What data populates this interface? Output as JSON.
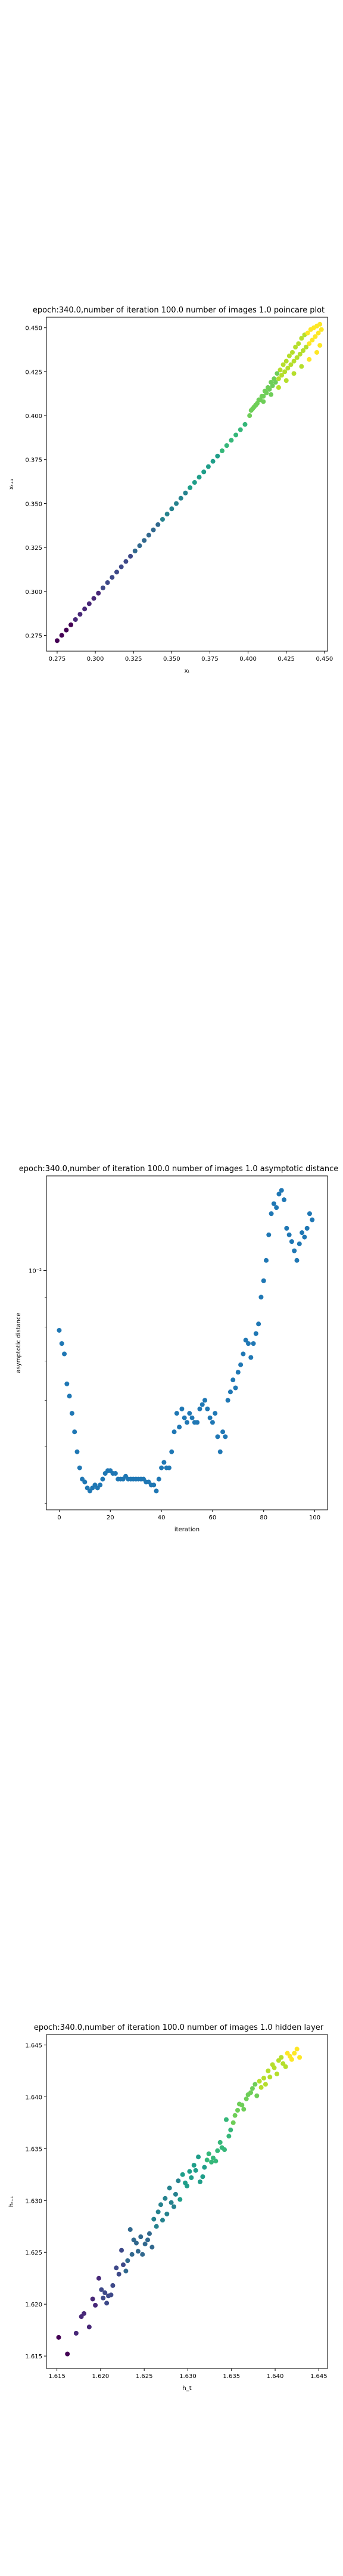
{
  "chart_data": [
    {
      "type": "scatter",
      "title": "epoch:340.0,number of iteration 100.0 number of images 1.0 poincare plot",
      "xlabel": "xₜ",
      "ylabel": "xₜ₊₁",
      "xlim": [
        0.268,
        0.452
      ],
      "ylim": [
        0.266,
        0.456
      ],
      "xticks": [
        "0.275",
        "0.300",
        "0.325",
        "0.350",
        "0.375",
        "0.400",
        "0.425",
        "0.450"
      ],
      "yticks": [
        "0.275",
        "0.300",
        "0.325",
        "0.350",
        "0.375",
        "0.400",
        "0.425",
        "0.450"
      ],
      "colormap": "viridis",
      "grid": false,
      "x": [
        0.275,
        0.278,
        0.281,
        0.284,
        0.287,
        0.29,
        0.293,
        0.296,
        0.299,
        0.302,
        0.305,
        0.308,
        0.311,
        0.314,
        0.317,
        0.32,
        0.323,
        0.326,
        0.329,
        0.332,
        0.335,
        0.338,
        0.341,
        0.344,
        0.347,
        0.35,
        0.353,
        0.356,
        0.359,
        0.362,
        0.365,
        0.368,
        0.371,
        0.374,
        0.377,
        0.38,
        0.383,
        0.386,
        0.389,
        0.392,
        0.395,
        0.398,
        0.401,
        0.403,
        0.405,
        0.407,
        0.409,
        0.411,
        0.413,
        0.415,
        0.417,
        0.419,
        0.421,
        0.423,
        0.425,
        0.427,
        0.429,
        0.431,
        0.433,
        0.435,
        0.437,
        0.439,
        0.441,
        0.443,
        0.445,
        0.447,
        0.402,
        0.404,
        0.406,
        0.408,
        0.41,
        0.412,
        0.414,
        0.416,
        0.418,
        0.42,
        0.422,
        0.424,
        0.426,
        0.428,
        0.43,
        0.432,
        0.434,
        0.436,
        0.438,
        0.44,
        0.442,
        0.444,
        0.446,
        0.448,
        0.405,
        0.41,
        0.415,
        0.42,
        0.425,
        0.43,
        0.435,
        0.44,
        0.445,
        0.447
      ],
      "y": [
        0.272,
        0.275,
        0.278,
        0.281,
        0.284,
        0.287,
        0.29,
        0.293,
        0.296,
        0.299,
        0.302,
        0.305,
        0.308,
        0.311,
        0.314,
        0.317,
        0.32,
        0.323,
        0.326,
        0.329,
        0.332,
        0.335,
        0.338,
        0.341,
        0.344,
        0.347,
        0.35,
        0.353,
        0.356,
        0.359,
        0.362,
        0.365,
        0.368,
        0.371,
        0.374,
        0.377,
        0.38,
        0.383,
        0.386,
        0.389,
        0.392,
        0.395,
        0.4,
        0.404,
        0.406,
        0.409,
        0.411,
        0.414,
        0.416,
        0.419,
        0.421,
        0.424,
        0.426,
        0.429,
        0.431,
        0.434,
        0.436,
        0.439,
        0.441,
        0.444,
        0.446,
        0.447,
        0.449,
        0.45,
        0.451,
        0.452,
        0.403,
        0.405,
        0.407,
        0.409,
        0.411,
        0.413,
        0.415,
        0.417,
        0.419,
        0.421,
        0.423,
        0.425,
        0.427,
        0.429,
        0.431,
        0.433,
        0.435,
        0.437,
        0.439,
        0.441,
        0.443,
        0.445,
        0.447,
        0.449,
        0.406,
        0.408,
        0.412,
        0.416,
        0.42,
        0.424,
        0.428,
        0.432,
        0.436,
        0.44
      ]
    },
    {
      "type": "scatter",
      "title": "epoch:340.0,number of iteration 100.0  number of images 1.0 asymptotic distance",
      "xlabel": "iteration",
      "ylabel": "asymptotic distance",
      "yscale": "log",
      "xlim": [
        -5,
        105
      ],
      "ylim": [
        0.0039,
        0.0145
      ],
      "xticks": [
        "0",
        "20",
        "40",
        "60",
        "80",
        "100"
      ],
      "yticks": [
        "10⁻²"
      ],
      "color": "#1f77b4",
      "grid": false,
      "x": [
        0,
        1,
        2,
        3,
        4,
        5,
        6,
        7,
        8,
        9,
        10,
        11,
        12,
        13,
        14,
        15,
        16,
        17,
        18,
        19,
        20,
        21,
        22,
        23,
        24,
        25,
        26,
        27,
        28,
        29,
        30,
        31,
        32,
        33,
        34,
        35,
        36,
        37,
        38,
        39,
        40,
        41,
        42,
        43,
        44,
        45,
        46,
        47,
        48,
        49,
        50,
        51,
        52,
        53,
        54,
        55,
        56,
        57,
        58,
        59,
        60,
        61,
        62,
        63,
        64,
        65,
        66,
        67,
        68,
        69,
        70,
        71,
        72,
        73,
        74,
        75,
        76,
        77,
        78,
        79,
        80,
        81,
        82,
        83,
        84,
        85,
        86,
        87,
        88,
        89,
        90,
        91,
        92,
        93,
        94,
        95,
        96,
        97,
        98,
        99
      ],
      "y": [
        0.0079,
        0.0075,
        0.0072,
        0.0064,
        0.0061,
        0.0057,
        0.0053,
        0.0049,
        0.0046,
        0.0044,
        0.00435,
        0.00425,
        0.0042,
        0.00425,
        0.0043,
        0.00425,
        0.0043,
        0.0044,
        0.0045,
        0.00455,
        0.00455,
        0.0045,
        0.0045,
        0.0044,
        0.0044,
        0.0044,
        0.00445,
        0.0044,
        0.0044,
        0.0044,
        0.0044,
        0.0044,
        0.0044,
        0.0044,
        0.00435,
        0.00435,
        0.0043,
        0.0043,
        0.0042,
        0.0044,
        0.0046,
        0.0047,
        0.0046,
        0.0046,
        0.0049,
        0.0053,
        0.0057,
        0.0054,
        0.0058,
        0.0056,
        0.0055,
        0.0057,
        0.0056,
        0.0055,
        0.0055,
        0.0058,
        0.0059,
        0.006,
        0.0058,
        0.0056,
        0.0055,
        0.0057,
        0.0052,
        0.0049,
        0.0053,
        0.0052,
        0.006,
        0.0062,
        0.0065,
        0.0063,
        0.0067,
        0.0069,
        0.0072,
        0.0076,
        0.0075,
        0.0071,
        0.0075,
        0.0078,
        0.0081,
        0.009,
        0.0096,
        0.0104,
        0.0115,
        0.0125,
        0.013,
        0.0128,
        0.0135,
        0.0137,
        0.0132,
        0.0118,
        0.0115,
        0.0112,
        0.0108,
        0.0104,
        0.0111,
        0.0116,
        0.0114,
        0.0118,
        0.0125,
        0.0122
      ]
    },
    {
      "type": "scatter",
      "title": "epoch:340.0,number of iteration 100.0  number of images 1.0 hidden layer",
      "xlabel": "h_t",
      "ylabel": "hₜ₊₁",
      "xlim": [
        1.6138,
        1.646
      ],
      "ylim": [
        1.6138,
        1.646
      ],
      "xticks": [
        "1.615",
        "1.620",
        "1.625",
        "1.630",
        "1.635",
        "1.640",
        "1.645"
      ],
      "yticks": [
        "1.615",
        "1.620",
        "1.625",
        "1.630",
        "1.635",
        "1.640",
        "1.645"
      ],
      "colormap": "viridis",
      "grid": false,
      "x": [
        1.6152,
        1.6162,
        1.6172,
        1.6178,
        1.6181,
        1.6187,
        1.6191,
        1.6194,
        1.6198,
        1.6201,
        1.6203,
        1.6205,
        1.6207,
        1.6209,
        1.6212,
        1.6214,
        1.6218,
        1.6221,
        1.6224,
        1.6226,
        1.6229,
        1.6231,
        1.6234,
        1.6236,
        1.6238,
        1.6241,
        1.6243,
        1.6246,
        1.6248,
        1.6251,
        1.6254,
        1.6256,
        1.6259,
        1.6261,
        1.6264,
        1.6266,
        1.6269,
        1.6271,
        1.6274,
        1.6276,
        1.6279,
        1.6281,
        1.6284,
        1.6286,
        1.6289,
        1.6291,
        1.6294,
        1.6297,
        1.6299,
        1.6302,
        1.6304,
        1.6307,
        1.6309,
        1.6312,
        1.6314,
        1.6317,
        1.6319,
        1.6322,
        1.6324,
        1.6327,
        1.6329,
        1.6332,
        1.6334,
        1.6337,
        1.6339,
        1.6342,
        1.6344,
        1.6347,
        1.6349,
        1.6352,
        1.6354,
        1.6357,
        1.6359,
        1.6362,
        1.6364,
        1.6367,
        1.6369,
        1.6372,
        1.6374,
        1.6377,
        1.6379,
        1.6382,
        1.6384,
        1.6387,
        1.6389,
        1.6392,
        1.6394,
        1.6397,
        1.6399,
        1.6402,
        1.6404,
        1.6407,
        1.6409,
        1.6412,
        1.6414,
        1.6417,
        1.6419,
        1.6422,
        1.6425,
        1.6428
      ],
      "y": [
        1.6168,
        1.6152,
        1.6172,
        1.6188,
        1.6191,
        1.6178,
        1.6205,
        1.6199,
        1.6225,
        1.6214,
        1.6206,
        1.6211,
        1.6201,
        1.6208,
        1.6209,
        1.6218,
        1.6235,
        1.6229,
        1.6252,
        1.6238,
        1.6232,
        1.6242,
        1.6272,
        1.6248,
        1.6262,
        1.6259,
        1.6251,
        1.6265,
        1.6248,
        1.6258,
        1.6262,
        1.6268,
        1.6255,
        1.6282,
        1.6275,
        1.6289,
        1.6296,
        1.6281,
        1.6302,
        1.6287,
        1.6312,
        1.6298,
        1.6294,
        1.6306,
        1.6319,
        1.6301,
        1.6325,
        1.6317,
        1.6314,
        1.6328,
        1.6322,
        1.6334,
        1.6329,
        1.6342,
        1.6318,
        1.6323,
        1.6332,
        1.6339,
        1.6345,
        1.6337,
        1.6341,
        1.6338,
        1.6348,
        1.6356,
        1.6351,
        1.6349,
        1.6378,
        1.6362,
        1.6368,
        1.6375,
        1.6382,
        1.6387,
        1.6393,
        1.6392,
        1.6388,
        1.6398,
        1.6402,
        1.6404,
        1.6408,
        1.6412,
        1.6401,
        1.6415,
        1.6409,
        1.6418,
        1.6412,
        1.6425,
        1.6419,
        1.6431,
        1.6428,
        1.6422,
        1.6435,
        1.6438,
        1.6432,
        1.6429,
        1.6442,
        1.6439,
        1.6436,
        1.6442,
        1.6446,
        1.6438
      ]
    }
  ]
}
